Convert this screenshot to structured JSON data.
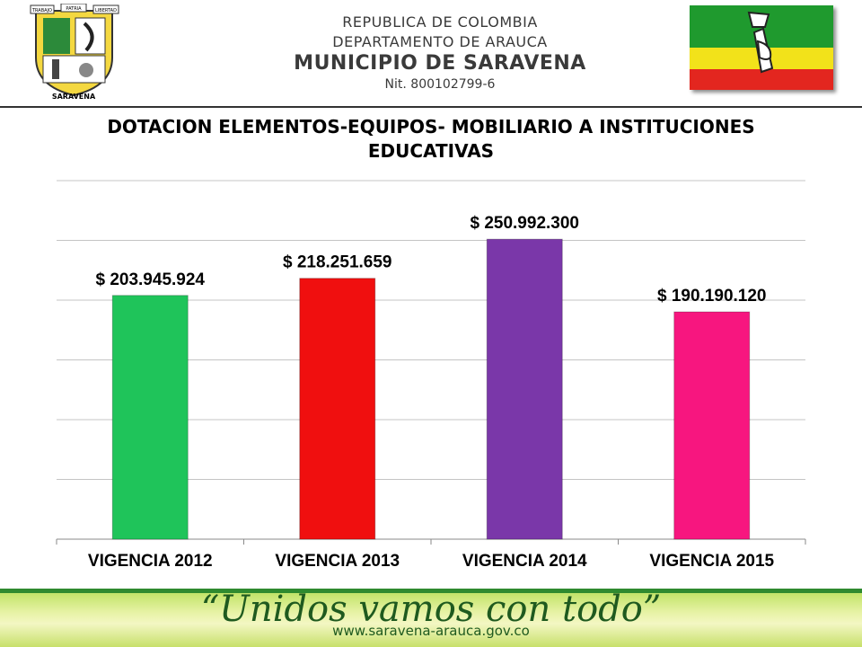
{
  "header": {
    "line1": "REPUBLICA DE COLOMBIA",
    "line2": "DEPARTAMENTO DE ARAUCA",
    "line3": "MUNICIPIO DE SARAVENA",
    "line4": "Nit. 800102799-6",
    "crest_text_top_left": "TRABAJO",
    "crest_text_top_mid": "PATRIA",
    "crest_text_top_right": "LIBERTAD",
    "crest_text_bottom": "SARAVENA",
    "flag_colors": [
      "#1f9a2e",
      "#f2e21a",
      "#e3261f"
    ]
  },
  "chart_data": {
    "type": "bar",
    "title": "DOTACION ELEMENTOS-EQUIPOS- MOBILIARIO A  INSTITUCIONES EDUCATIVAS",
    "categories": [
      "VIGENCIA 2012",
      "VIGENCIA 2013",
      "VIGENCIA 2014",
      "VIGENCIA 2015"
    ],
    "values": [
      203945924,
      218251659,
      250992300,
      190190120
    ],
    "data_labels": [
      "$ 203.945.924",
      "$ 218.251.659",
      "$ 250.992.300",
      "$ 190.190.120"
    ],
    "bar_colors": [
      "#1fc45a",
      "#f00f0f",
      "#7a37a9",
      "#f7167f"
    ],
    "ylim": [
      0,
      300000000
    ],
    "grid": true,
    "legend": "none"
  },
  "footer": {
    "slogan": "“Unidos vamos con todo”",
    "website": "www.saravena-arauca.gov.co"
  }
}
